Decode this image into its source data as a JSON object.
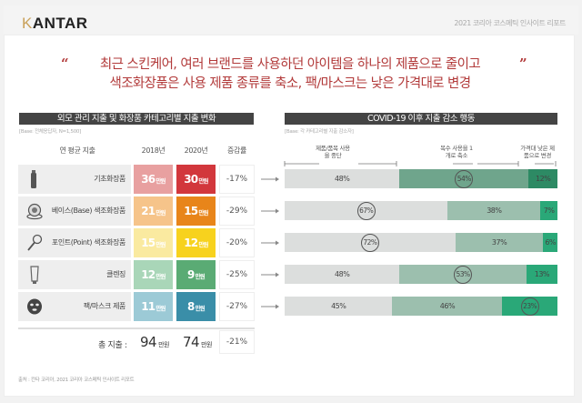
{
  "header": {
    "logo": "KANTAR",
    "logo_first": "K",
    "logo_rest": "ANTAR",
    "report_title": "2021 코리아 코스메틱 인사이트 리포트"
  },
  "quote": {
    "open_mark": "“",
    "close_mark": "”",
    "line1": "최근 스킨케어, 여러 브랜드를 사용하던 아이템을 하나의 제품으로 줄이고",
    "line2": "색조화장품은  사용 제품 종류를 축소, 팩/마스크는 낮은 가격대로 변경"
  },
  "left_table": {
    "title": "외모 관리 지출 및 화장품 카테고리별 지출 변화",
    "base_note": "[Base: 전체응답자, N=1,500]",
    "headers": {
      "category": "연 평균 지출",
      "y2018": "2018년",
      "y2020": "2020년",
      "change": "증감률"
    },
    "unit": "만원",
    "rows": [
      {
        "icon": "bottle-icon",
        "label": "기초화장품",
        "v2018": "36",
        "v2020": "30",
        "change": "-17%",
        "c2018": "#e8a0a0",
        "c2020": "#d2373c"
      },
      {
        "icon": "compact-icon",
        "label": "베이스(Base) 색조화장품",
        "v2018": "21",
        "v2020": "15",
        "change": "-29%",
        "c2018": "#f6c48a",
        "c2020": "#e8851a"
      },
      {
        "icon": "makeup-brush-icon",
        "label": "포인트(Point) 색조화장품",
        "v2018": "15",
        "v2020": "12",
        "change": "-20%",
        "c2018": "#faeaa0",
        "c2020": "#f7d21e"
      },
      {
        "icon": "tube-icon",
        "label": "클렌징",
        "v2018": "12",
        "v2020": "9",
        "change": "-25%",
        "c2018": "#a9d6b8",
        "c2020": "#5aab74"
      },
      {
        "icon": "face-mask-icon",
        "label": "팩/마스크 제품",
        "v2018": "11",
        "v2020": "8",
        "change": "-27%",
        "c2018": "#9ccad6",
        "c2020": "#3a8ea8"
      }
    ],
    "total": {
      "label": "총 지출 :",
      "v2018": "94",
      "v2020": "74",
      "unit": "만원",
      "change": "-21%"
    },
    "source": "출처 : 칸타 코리아, 2021 코리아 코스메틱 인사이트 리포트"
  },
  "chart_data": {
    "type": "bar",
    "orientation": "horizontal-stacked",
    "title": "COVID-19 이후 지출 감소 행동",
    "subtitle": "[Base: 각 카테고리별 지출 감소자]",
    "categories": [
      "기초화장품",
      "베이스(Base) 색조화장품",
      "포인트(Point) 색조화장품",
      "클렌징",
      "팩/마스크 제품"
    ],
    "series": [
      {
        "name": "제품/품목 사용을 중단",
        "values": [
          48,
          67,
          72,
          48,
          45
        ],
        "color": "#dcdedd"
      },
      {
        "name": "복수 사용을 1개로 축소",
        "values": [
          54,
          38,
          37,
          53,
          46
        ],
        "color": "#9cbfae"
      },
      {
        "name": "가격대 낮은 제품으로 변경",
        "values": [
          12,
          7,
          6,
          13,
          23
        ],
        "color": "#2aa878"
      }
    ],
    "highlighted": [
      [
        1
      ],
      [
        0
      ],
      [
        0
      ],
      [
        1
      ],
      [
        2
      ]
    ],
    "value_suffix": "%",
    "legend": "top"
  }
}
